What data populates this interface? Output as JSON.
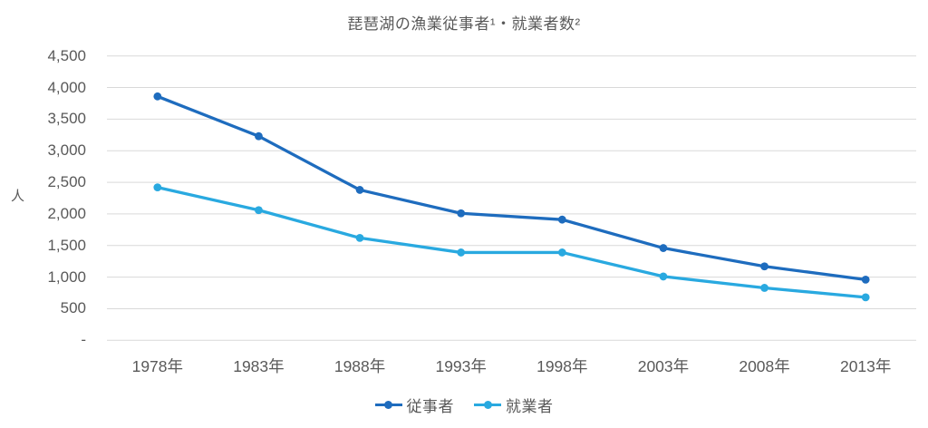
{
  "chart": {
    "title": "琵琶湖の漁業従事者¹・就業者数²",
    "y_unit": "人"
  },
  "chart_data": {
    "type": "line",
    "title": "琵琶湖の漁業従事者¹・就業者数²",
    "xlabel": "",
    "ylabel": "人",
    "categories": [
      "1978年",
      "1983年",
      "1988年",
      "1993年",
      "1998年",
      "2003年",
      "2008年",
      "2013年"
    ],
    "series": [
      {
        "name": "従事者",
        "color": "#1E6CBE",
        "values": [
          3860,
          3230,
          2380,
          2010,
          1910,
          1460,
          1170,
          960
        ]
      },
      {
        "name": "就業者",
        "color": "#29A9E0",
        "values": [
          2420,
          2060,
          1620,
          1390,
          1390,
          1010,
          830,
          680
        ]
      }
    ],
    "ylim": [
      0,
      4500
    ],
    "ytick_step": 500,
    "ytick_labels": [
      "-",
      "500",
      "1,000",
      "1,500",
      "2,000",
      "2,500",
      "3,000",
      "3,500",
      "4,000",
      "4,500"
    ],
    "grid": true,
    "grid_color": "#D9D9D9",
    "text_color": "#595959",
    "legend_position": "bottom"
  }
}
